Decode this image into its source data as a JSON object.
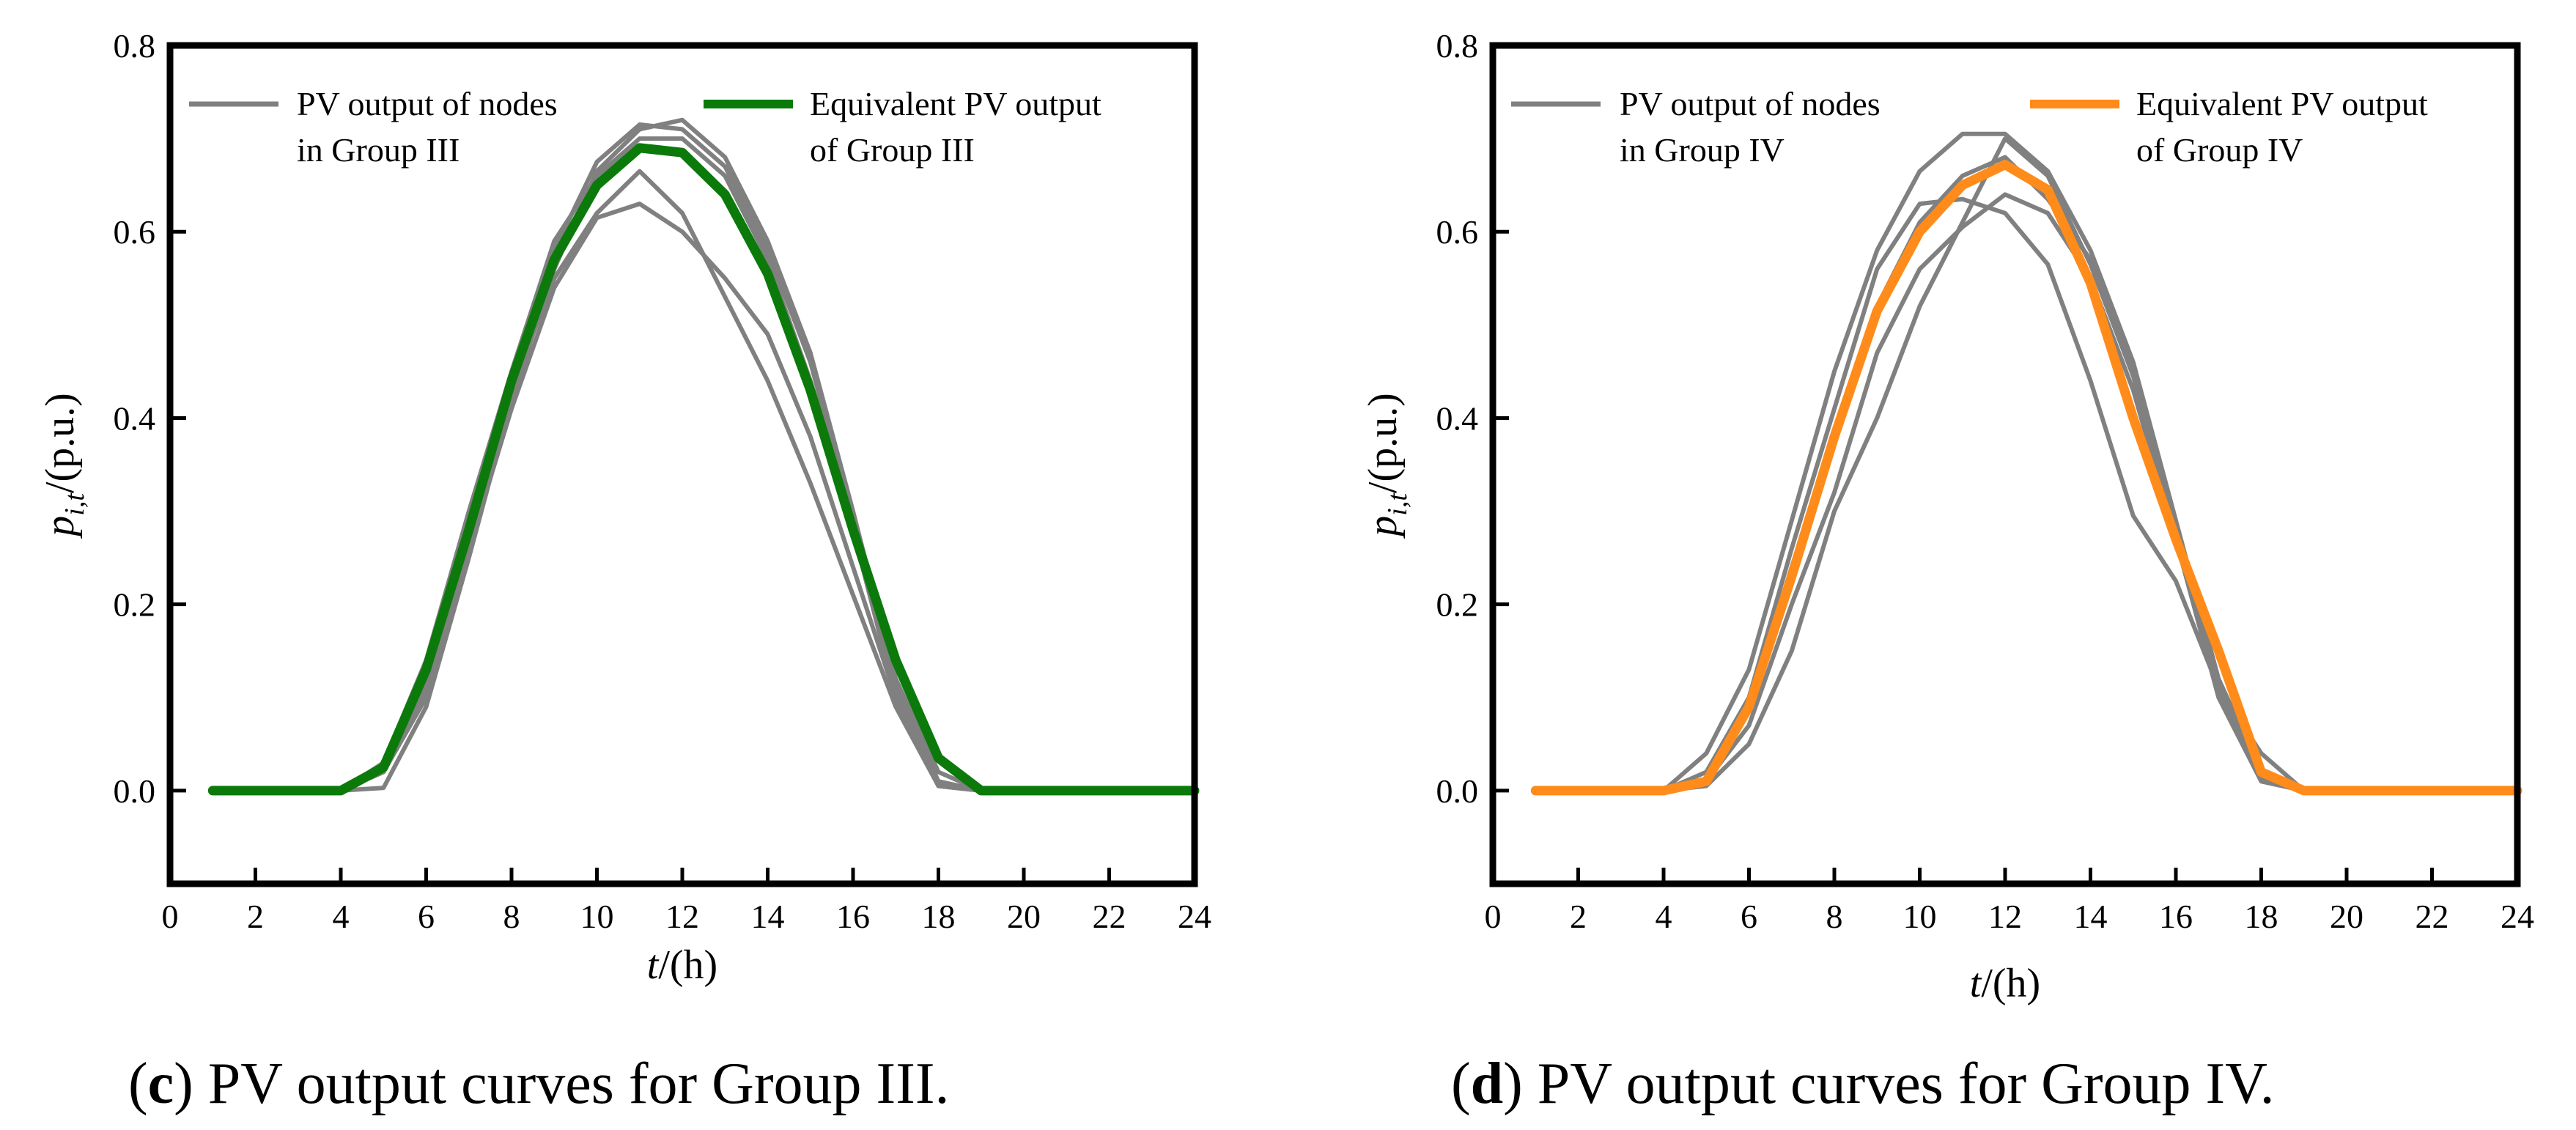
{
  "charts": [
    {
      "chart_data": {
        "type": "line",
        "title": "",
        "xlabel_var": "t",
        "xlabel_unit": "/(h)",
        "ylabel_var": "p",
        "ylabel_sub": "i,t",
        "ylabel_unit": "/(p.u.)",
        "xlim": [
          0,
          24
        ],
        "ylim": [
          -0.1,
          0.8
        ],
        "xticks": [
          0,
          2,
          4,
          6,
          8,
          10,
          12,
          14,
          16,
          18,
          20,
          22,
          24
        ],
        "yticks": [
          0.0,
          0.2,
          0.4,
          0.6,
          0.8
        ],
        "x": [
          1,
          2,
          3,
          4,
          5,
          6,
          7,
          8,
          9,
          10,
          11,
          12,
          13,
          14,
          15,
          16,
          17,
          18,
          19,
          20,
          21,
          22,
          23,
          24
        ],
        "legend": {
          "position": "top",
          "nodes_label_line1": "PV output of nodes",
          "nodes_label_line2": "in Group III",
          "equiv_label_line1": "Equivalent PV output",
          "equiv_label_line2": "of Group III"
        },
        "series": [
          {
            "name": "PV output of nodes in Group III",
            "color": "#808080",
            "values": [
              0,
              0,
              0,
              0,
              0.003,
              0.09,
              0.25,
              0.42,
              0.56,
              0.665,
              0.71,
              0.72,
              0.68,
              0.59,
              0.47,
              0.3,
              0.12,
              0.02,
              0,
              0,
              0,
              0,
              0,
              0
            ]
          },
          {
            "name": "PV output of nodes in Group III",
            "color": "#808080",
            "values": [
              0,
              0,
              0,
              0,
              0.02,
              0.11,
              0.27,
              0.44,
              0.58,
              0.675,
              0.715,
              0.71,
              0.67,
              0.58,
              0.46,
              0.29,
              0.11,
              0.01,
              0,
              0,
              0,
              0,
              0,
              0
            ]
          },
          {
            "name": "PV output of nodes in Group III",
            "color": "#808080",
            "values": [
              0,
              0,
              0,
              0,
              0.03,
              0.14,
              0.3,
              0.45,
              0.59,
              0.66,
              0.7,
              0.7,
              0.66,
              0.57,
              0.44,
              0.28,
              0.1,
              0.005,
              0,
              0,
              0,
              0,
              0,
              0
            ]
          },
          {
            "name": "PV output of nodes in Group III",
            "color": "#808080",
            "values": [
              0,
              0,
              0,
              0,
              0.025,
              0.12,
              0.28,
              0.43,
              0.55,
              0.62,
              0.665,
              0.62,
              0.53,
              0.44,
              0.33,
              0.21,
              0.09,
              0.005,
              0,
              0,
              0,
              0,
              0,
              0
            ]
          },
          {
            "name": "PV output of nodes in Group III",
            "color": "#808080",
            "values": [
              0,
              0,
              0,
              0,
              0.02,
              0.1,
              0.26,
              0.41,
              0.54,
              0.615,
              0.63,
              0.6,
              0.55,
              0.49,
              0.38,
              0.24,
              0.1,
              0.005,
              0,
              0,
              0,
              0,
              0,
              0
            ]
          },
          {
            "name": "Equivalent PV output of Group III",
            "color": "#0b7a0b",
            "equivalent": true,
            "values": [
              0,
              0,
              0,
              0,
              0.025,
              0.13,
              0.28,
              0.44,
              0.57,
              0.65,
              0.69,
              0.685,
              0.64,
              0.555,
              0.43,
              0.28,
              0.14,
              0.035,
              0,
              0,
              0,
              0,
              0,
              0
            ]
          }
        ]
      },
      "caption": {
        "letter": "c",
        "text": " PV output curves for Group III."
      }
    },
    {
      "chart_data": {
        "type": "line",
        "title": "",
        "xlabel_var": "t",
        "xlabel_unit": "/(h)",
        "ylabel_var": "p",
        "ylabel_sub": "i,t",
        "ylabel_unit": "/(p.u.)",
        "xlim": [
          0,
          24
        ],
        "ylim": [
          -0.1,
          0.8
        ],
        "xticks": [
          0,
          2,
          4,
          6,
          8,
          10,
          12,
          14,
          16,
          18,
          20,
          22,
          24
        ],
        "yticks": [
          0.0,
          0.2,
          0.4,
          0.6,
          0.8
        ],
        "x": [
          1,
          2,
          3,
          4,
          5,
          6,
          7,
          8,
          9,
          10,
          11,
          12,
          13,
          14,
          15,
          16,
          17,
          18,
          19,
          20,
          21,
          22,
          23,
          24
        ],
        "legend": {
          "position": "top",
          "nodes_label_line1": "PV output of nodes",
          "nodes_label_line2": "in Group IV",
          "equiv_label_line1": "Equivalent PV output",
          "equiv_label_line2": "of Group IV"
        },
        "series": [
          {
            "name": "PV output of nodes in Group IV",
            "color": "#808080",
            "values": [
              0,
              0,
              0,
              0,
              0.04,
              0.13,
              0.29,
              0.45,
              0.58,
              0.665,
              0.705,
              0.705,
              0.665,
              0.58,
              0.46,
              0.29,
              0.12,
              0.02,
              0,
              0,
              0,
              0,
              0,
              0
            ]
          },
          {
            "name": "PV output of nodes in Group IV",
            "color": "#808080",
            "values": [
              0,
              0,
              0,
              0,
              0.02,
              0.1,
              0.26,
              0.41,
              0.56,
              0.63,
              0.635,
              0.62,
              0.565,
              0.44,
              0.295,
              0.225,
              0.11,
              0.015,
              0,
              0,
              0,
              0,
              0,
              0
            ]
          },
          {
            "name": "PV output of nodes in Group IV",
            "color": "#808080",
            "values": [
              0,
              0,
              0,
              0,
              0.005,
              0.05,
              0.15,
              0.3,
              0.4,
              0.52,
              0.61,
              0.7,
              0.66,
              0.565,
              0.445,
              0.28,
              0.11,
              0.01,
              0,
              0,
              0,
              0,
              0,
              0
            ]
          },
          {
            "name": "PV output of nodes in Group IV",
            "color": "#808080",
            "values": [
              0,
              0,
              0,
              0,
              0.01,
              0.07,
              0.2,
              0.32,
              0.47,
              0.56,
              0.605,
              0.64,
              0.62,
              0.55,
              0.43,
              0.27,
              0.1,
              0.01,
              0,
              0,
              0,
              0,
              0,
              0
            ]
          },
          {
            "name": "PV output of nodes in Group IV",
            "color": "#808080",
            "values": [
              0,
              0,
              0,
              0,
              0.01,
              0.09,
              0.24,
              0.38,
              0.52,
              0.61,
              0.66,
              0.68,
              0.635,
              0.57,
              0.45,
              0.28,
              0.11,
              0.04,
              0,
              0,
              0,
              0,
              0,
              0
            ]
          },
          {
            "name": "Equivalent PV output of Group IV",
            "color": "#ff8c1a",
            "equivalent": true,
            "values": [
              0,
              0,
              0,
              0,
              0.01,
              0.09,
              0.23,
              0.38,
              0.515,
              0.6,
              0.65,
              0.672,
              0.645,
              0.545,
              0.4,
              0.27,
              0.15,
              0.02,
              0,
              0,
              0,
              0,
              0,
              0
            ]
          }
        ]
      },
      "caption": {
        "letter": "d",
        "text": " PV output curves for Group IV."
      }
    }
  ]
}
